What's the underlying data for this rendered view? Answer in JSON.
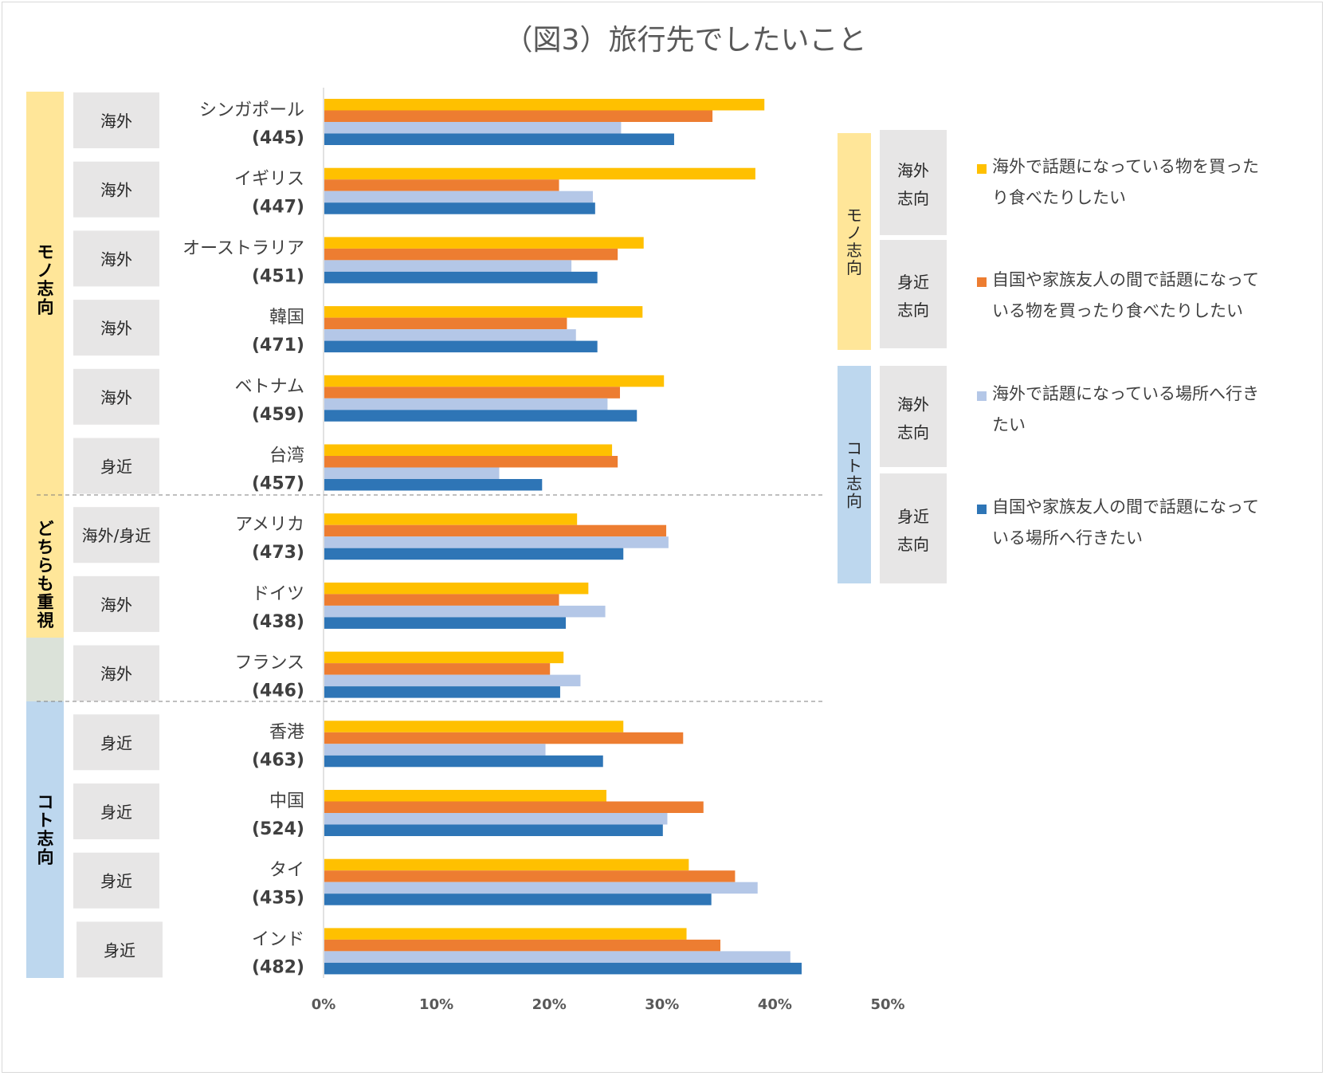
{
  "chart_data": {
    "type": "bar",
    "orientation": "horizontal",
    "title": "（図3）旅行先でしたいこと",
    "xlim": [
      0,
      50
    ],
    "x_ticks": [
      "0%",
      "10%",
      "20%",
      "30%",
      "40%",
      "50%"
    ],
    "categories": [
      {
        "name": "シンガポール",
        "n": "(445)",
        "region": "海外"
      },
      {
        "name": "イギリス",
        "n": "(447)",
        "region": "海外"
      },
      {
        "name": "オーストラリア",
        "n": "(451)",
        "region": "海外"
      },
      {
        "name": "韓国",
        "n": "(471)",
        "region": "海外"
      },
      {
        "name": "ベトナム",
        "n": "(459)",
        "region": "海外"
      },
      {
        "name": "台湾",
        "n": "(457)",
        "region": "身近"
      },
      {
        "name": "アメリカ",
        "n": "(473)",
        "region": "海外/身近"
      },
      {
        "name": "ドイツ",
        "n": "(438)",
        "region": "海外"
      },
      {
        "name": "フランス",
        "n": "(446)",
        "region": "海外"
      },
      {
        "name": "香港",
        "n": "(463)",
        "region": "身近"
      },
      {
        "name": "中国",
        "n": "(524)",
        "region": "身近"
      },
      {
        "name": "タイ",
        "n": "(435)",
        "region": "身近"
      },
      {
        "name": "インド",
        "n": "(482)",
        "region": "身近"
      }
    ],
    "series": [
      {
        "name": "海外で話題になっている物を買ったり食べたりしたい",
        "color": "#ffc000",
        "values": [
          39.0,
          38.2,
          28.3,
          28.2,
          30.1,
          25.5,
          22.4,
          23.4,
          21.2,
          26.5,
          25.0,
          32.3,
          32.1
        ]
      },
      {
        "name": "自国や家族友人の間で話題になっている物を買ったり食べたりしたい",
        "color": "#ed7d31",
        "values": [
          34.4,
          20.8,
          26.0,
          21.5,
          26.2,
          26.0,
          30.3,
          20.8,
          20.0,
          31.8,
          33.6,
          36.4,
          35.1
        ]
      },
      {
        "name": "海外で話題になっている場所へ行きたい",
        "color": "#b4c7e7",
        "values": [
          26.3,
          23.8,
          21.9,
          22.3,
          25.1,
          15.5,
          30.5,
          24.9,
          22.7,
          19.6,
          30.4,
          38.4,
          41.3
        ]
      },
      {
        "name": "自国や家族友人の間で話題になっている場所へ行きたい",
        "color": "#2e75b6",
        "values": [
          31.0,
          24.0,
          24.2,
          24.2,
          27.7,
          19.3,
          26.5,
          21.4,
          20.9,
          24.7,
          30.0,
          34.3,
          42.3
        ]
      }
    ],
    "groups": [
      {
        "label": "モノ志向",
        "color": "#ffe699",
        "rows": [
          0,
          5
        ]
      },
      {
        "label": "どちらも重視",
        "color": "#ffe699",
        "rows": [
          6,
          8
        ]
      },
      {
        "label": "コト志向",
        "color": "#bdd7ee",
        "rows": [
          9,
          12
        ]
      }
    ],
    "legend": {
      "placement": "right",
      "groups": [
        {
          "label": "モノ志向",
          "color": "#ffe699",
          "keys": [
            {
              "label_lines": [
                "海外",
                "志向"
              ],
              "series_index": 0
            },
            {
              "label_lines": [
                "身近",
                "志向"
              ],
              "series_index": 1
            }
          ]
        },
        {
          "label": "コト志向",
          "color": "#bdd7ee",
          "keys": [
            {
              "label_lines": [
                "海外",
                "志向"
              ],
              "series_index": 2
            },
            {
              "label_lines": [
                "身近",
                "志向"
              ],
              "series_index": 3
            }
          ]
        }
      ],
      "entry_lines": [
        [
          "海外で話題になっている物を買った",
          "り食べたりしたい"
        ],
        [
          "自国や家族友人の間で話題になって",
          "いる物を買ったり食べたりしたい"
        ],
        [
          "海外で話題になっている場所へ行き",
          "たい"
        ],
        [
          "自国や家族友人の間で話題になって",
          "いる場所へ行きたい"
        ]
      ]
    }
  }
}
